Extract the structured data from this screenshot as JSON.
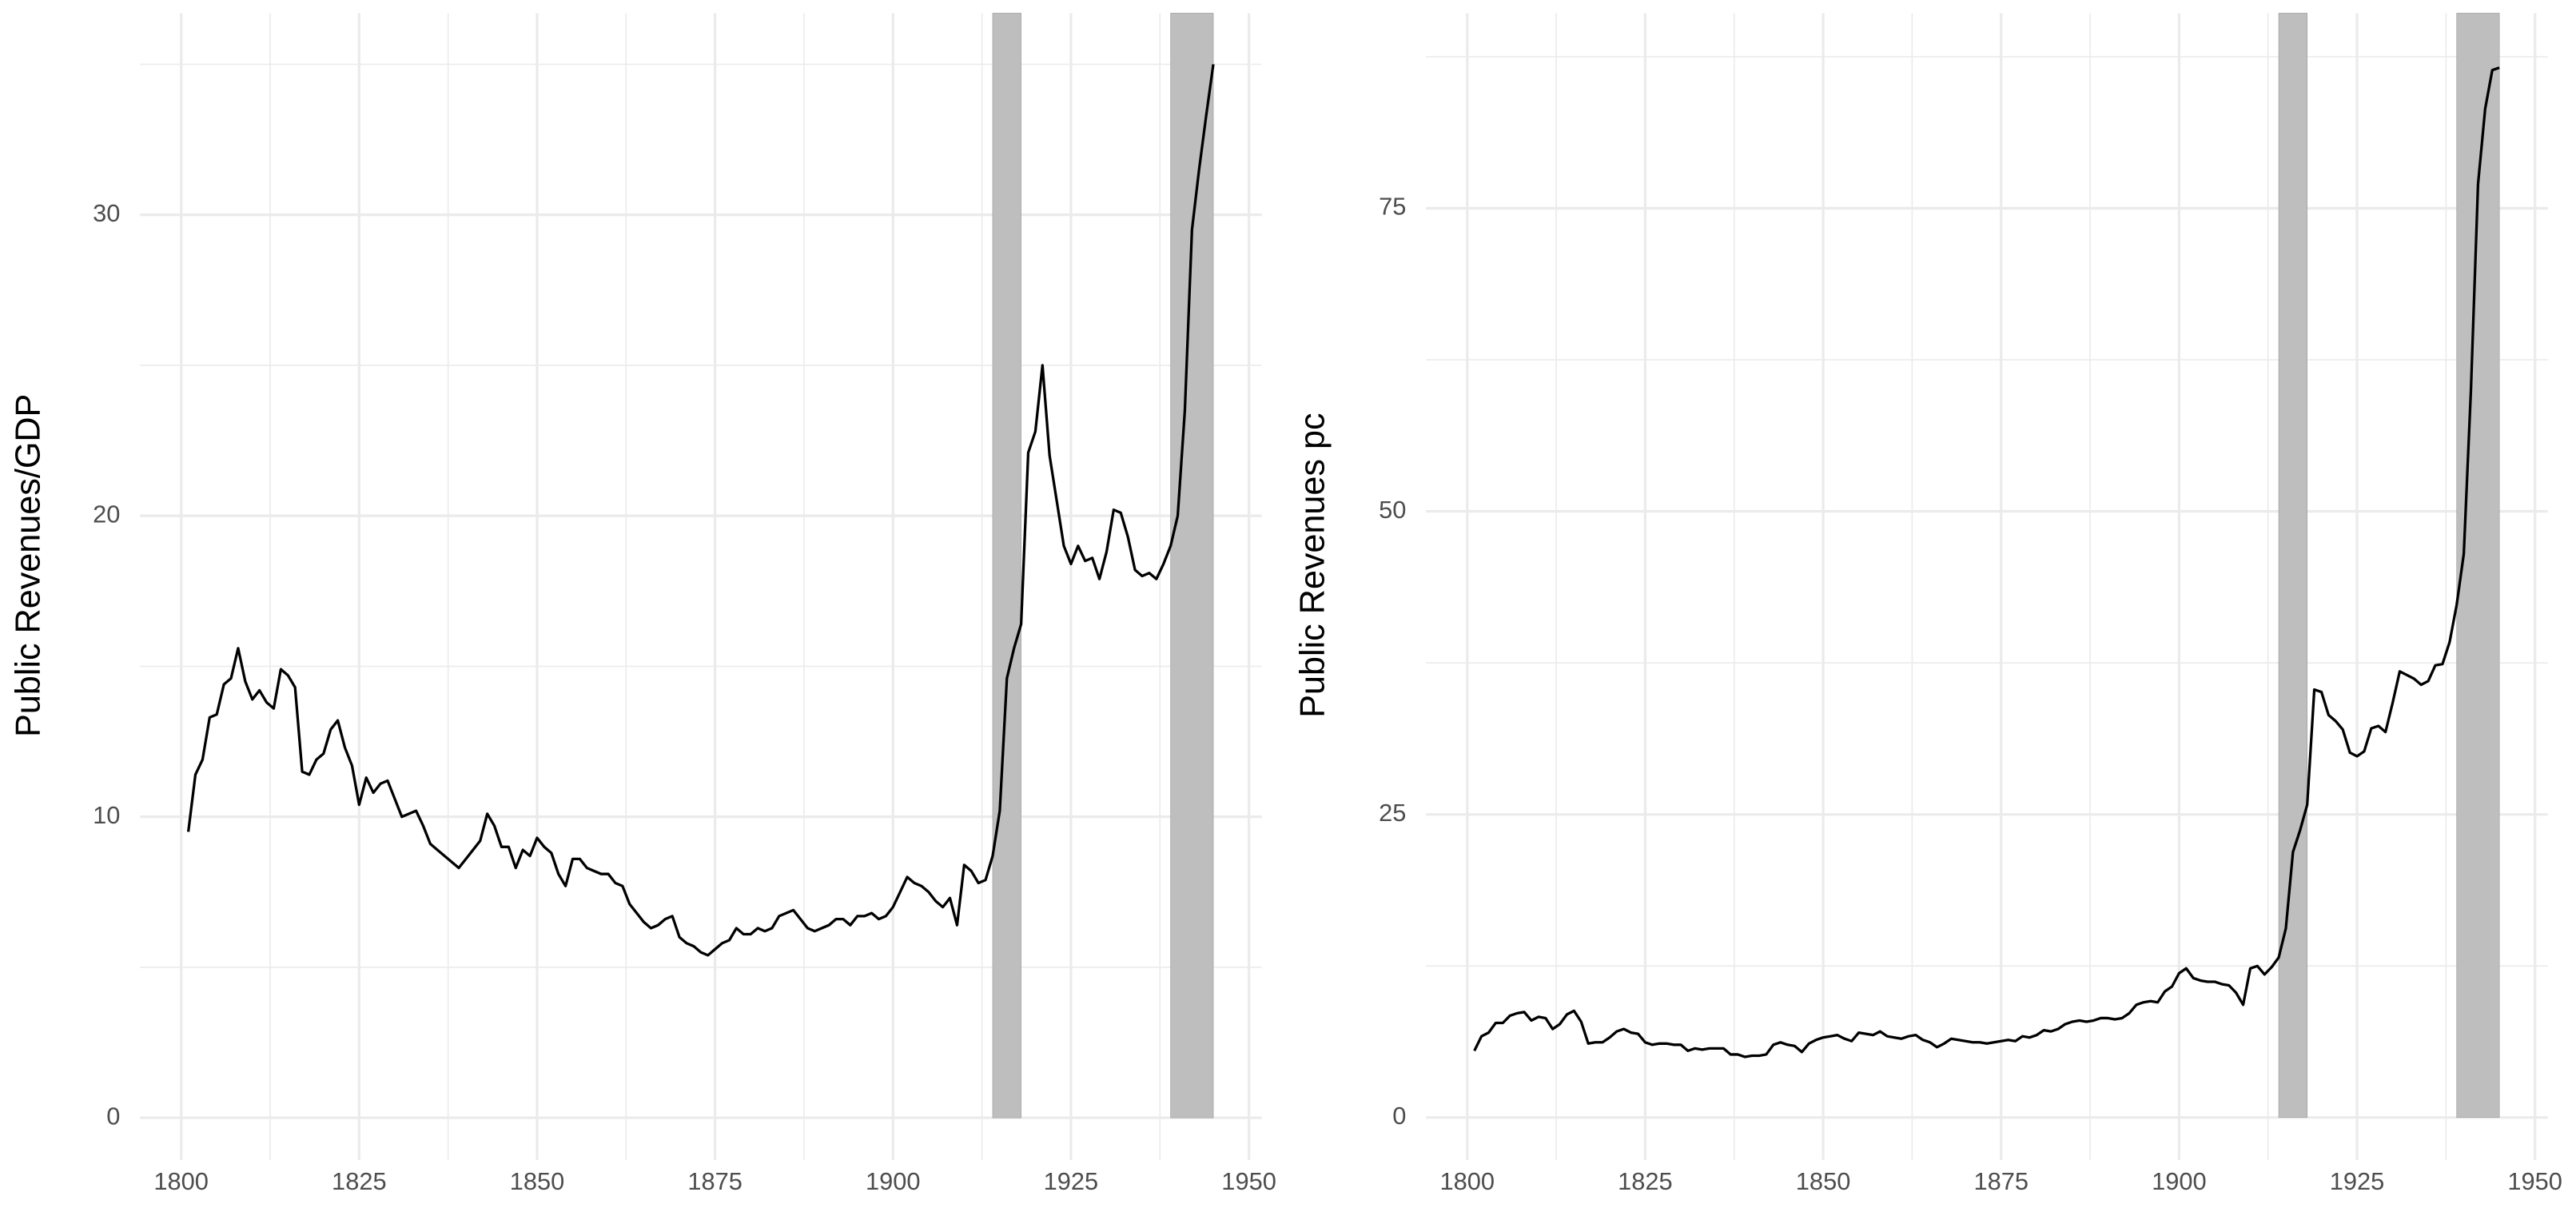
{
  "chart_data": [
    {
      "type": "line",
      "y_label": "Public Revenues/GDP",
      "color": "#000000",
      "grid": true,
      "minor_grid": true,
      "shaded_periods": [
        {
          "start": 1914,
          "end": 1918
        },
        {
          "start": 1939,
          "end": 1945
        }
      ],
      "shade_color": "#bebebe",
      "xlim": [
        1794.2,
        1951.8
      ],
      "xticks": [
        1800,
        1825,
        1850,
        1875,
        1900,
        1925,
        1950
      ],
      "ylim": [
        -1.4,
        36.7
      ],
      "yticks": [
        0,
        10,
        20,
        30
      ],
      "x": [
        1801,
        1802,
        1803,
        1804,
        1805,
        1806,
        1807,
        1808,
        1809,
        1810,
        1811,
        1812,
        1813,
        1814,
        1815,
        1816,
        1817,
        1818,
        1819,
        1820,
        1821,
        1822,
        1823,
        1824,
        1825,
        1826,
        1827,
        1828,
        1829,
        1830,
        1831,
        1832,
        1833,
        1834,
        1835,
        1836,
        1837,
        1838,
        1839,
        1840,
        1841,
        1842,
        1843,
        1844,
        1845,
        1846,
        1847,
        1848,
        1849,
        1850,
        1851,
        1852,
        1853,
        1854,
        1855,
        1856,
        1857,
        1858,
        1859,
        1860,
        1861,
        1862,
        1863,
        1864,
        1865,
        1866,
        1867,
        1868,
        1869,
        1870,
        1871,
        1872,
        1873,
        1874,
        1875,
        1876,
        1877,
        1878,
        1879,
        1880,
        1881,
        1882,
        1883,
        1884,
        1885,
        1886,
        1887,
        1888,
        1889,
        1890,
        1891,
        1892,
        1893,
        1894,
        1895,
        1896,
        1897,
        1898,
        1899,
        1900,
        1901,
        1902,
        1903,
        1904,
        1905,
        1906,
        1907,
        1908,
        1909,
        1910,
        1911,
        1912,
        1913,
        1914,
        1915,
        1916,
        1917,
        1918,
        1919,
        1920,
        1921,
        1922,
        1923,
        1924,
        1925,
        1926,
        1927,
        1928,
        1929,
        1930,
        1931,
        1932,
        1933,
        1934,
        1935,
        1936,
        1937,
        1938,
        1939,
        1940,
        1941,
        1942,
        1943,
        1944,
        1945
      ],
      "values": [
        9.5,
        11.4,
        11.9,
        13.3,
        13.4,
        14.4,
        14.6,
        15.6,
        14.5,
        13.9,
        14.2,
        13.8,
        13.6,
        14.9,
        14.7,
        14.3,
        11.5,
        11.4,
        11.9,
        12.1,
        12.9,
        13.2,
        12.3,
        11.7,
        10.4,
        11.3,
        10.8,
        11.1,
        11.2,
        10.6,
        10.0,
        10.1,
        10.2,
        9.7,
        9.1,
        8.9,
        8.7,
        8.5,
        8.3,
        8.6,
        8.9,
        9.2,
        10.1,
        9.7,
        9.0,
        9.0,
        8.3,
        8.9,
        8.7,
        9.3,
        9.0,
        8.8,
        8.1,
        7.7,
        8.6,
        8.6,
        8.3,
        8.2,
        8.1,
        8.1,
        7.8,
        7.7,
        7.1,
        6.8,
        6.5,
        6.3,
        6.4,
        6.6,
        6.7,
        6.0,
        5.8,
        5.7,
        5.5,
        5.4,
        5.6,
        5.8,
        5.9,
        6.3,
        6.1,
        6.1,
        6.3,
        6.2,
        6.3,
        6.7,
        6.8,
        6.9,
        6.6,
        6.3,
        6.2,
        6.3,
        6.4,
        6.6,
        6.6,
        6.4,
        6.7,
        6.7,
        6.8,
        6.6,
        6.7,
        7.0,
        7.5,
        8.0,
        7.8,
        7.7,
        7.5,
        7.2,
        7.0,
        7.3,
        6.4,
        8.4,
        8.2,
        7.8,
        7.9,
        8.7,
        10.2,
        14.6,
        15.6,
        16.4,
        22.1,
        22.8,
        25.0,
        22.0,
        20.5,
        19.0,
        18.4,
        19.0,
        18.5,
        18.6,
        17.9,
        18.8,
        20.2,
        20.1,
        19.3,
        18.2,
        18.0,
        18.1,
        17.9,
        18.4,
        19.0,
        20.0,
        23.5,
        29.5,
        31.5,
        33.3,
        35.0
      ]
    },
    {
      "type": "line",
      "y_label": "Public Revenues pc",
      "color": "#000000",
      "grid": true,
      "minor_grid": true,
      "shaded_periods": [
        {
          "start": 1914,
          "end": 1918
        },
        {
          "start": 1939,
          "end": 1945
        }
      ],
      "shade_color": "#bebebe",
      "xlim": [
        1794.2,
        1951.8
      ],
      "xticks": [
        1800,
        1825,
        1850,
        1875,
        1900,
        1925,
        1950
      ],
      "ylim": [
        -3.5,
        91.1
      ],
      "yticks": [
        0,
        25,
        50,
        75
      ],
      "x": [
        1801,
        1802,
        1803,
        1804,
        1805,
        1806,
        1807,
        1808,
        1809,
        1810,
        1811,
        1812,
        1813,
        1814,
        1815,
        1816,
        1817,
        1818,
        1819,
        1820,
        1821,
        1822,
        1823,
        1824,
        1825,
        1826,
        1827,
        1828,
        1829,
        1830,
        1831,
        1832,
        1833,
        1834,
        1835,
        1836,
        1837,
        1838,
        1839,
        1840,
        1841,
        1842,
        1843,
        1844,
        1845,
        1846,
        1847,
        1848,
        1849,
        1850,
        1851,
        1852,
        1853,
        1854,
        1855,
        1856,
        1857,
        1858,
        1859,
        1860,
        1861,
        1862,
        1863,
        1864,
        1865,
        1866,
        1867,
        1868,
        1869,
        1870,
        1871,
        1872,
        1873,
        1874,
        1875,
        1876,
        1877,
        1878,
        1879,
        1880,
        1881,
        1882,
        1883,
        1884,
        1885,
        1886,
        1887,
        1888,
        1889,
        1890,
        1891,
        1892,
        1893,
        1894,
        1895,
        1896,
        1897,
        1898,
        1899,
        1900,
        1901,
        1902,
        1903,
        1904,
        1905,
        1906,
        1907,
        1908,
        1909,
        1910,
        1911,
        1912,
        1913,
        1914,
        1915,
        1916,
        1917,
        1918,
        1919,
        1920,
        1921,
        1922,
        1923,
        1924,
        1925,
        1926,
        1927,
        1928,
        1929,
        1930,
        1931,
        1932,
        1933,
        1934,
        1935,
        1936,
        1937,
        1938,
        1939,
        1940,
        1941,
        1942,
        1943,
        1944,
        1945
      ],
      "values": [
        5.5,
        6.7,
        7.0,
        7.8,
        7.8,
        8.4,
        8.6,
        8.7,
        8.0,
        8.3,
        8.2,
        7.3,
        7.7,
        8.5,
        8.8,
        7.9,
        6.1,
        6.2,
        6.2,
        6.6,
        7.1,
        7.3,
        7.0,
        6.9,
        6.2,
        6.0,
        6.1,
        6.1,
        6.0,
        6.0,
        5.5,
        5.7,
        5.6,
        5.7,
        5.7,
        5.7,
        5.2,
        5.2,
        5.0,
        5.1,
        5.1,
        5.2,
        6.0,
        6.2,
        6.0,
        5.9,
        5.4,
        6.1,
        6.4,
        6.6,
        6.7,
        6.8,
        6.5,
        6.3,
        7.0,
        6.9,
        6.8,
        7.1,
        6.7,
        6.6,
        6.5,
        6.7,
        6.8,
        6.4,
        6.2,
        5.8,
        6.1,
        6.5,
        6.4,
        6.3,
        6.2,
        6.2,
        6.1,
        6.2,
        6.3,
        6.4,
        6.3,
        6.7,
        6.6,
        6.8,
        7.2,
        7.1,
        7.3,
        7.7,
        7.9,
        8.0,
        7.9,
        8.0,
        8.2,
        8.2,
        8.1,
        8.2,
        8.6,
        9.3,
        9.5,
        9.6,
        9.5,
        10.4,
        10.8,
        11.9,
        12.3,
        11.5,
        11.3,
        11.2,
        11.2,
        11.0,
        10.9,
        10.3,
        9.3,
        12.3,
        12.5,
        11.8,
        12.4,
        13.2,
        15.6,
        21.9,
        23.7,
        25.8,
        35.3,
        35.1,
        33.2,
        32.7,
        32.0,
        30.1,
        29.8,
        30.2,
        32.1,
        32.3,
        31.8,
        34.2,
        36.8,
        36.5,
        36.2,
        35.7,
        36.0,
        37.3,
        37.4,
        39.2,
        42.3,
        46.5,
        60.0,
        77.0,
        83.2,
        86.4,
        86.6
      ]
    }
  ]
}
